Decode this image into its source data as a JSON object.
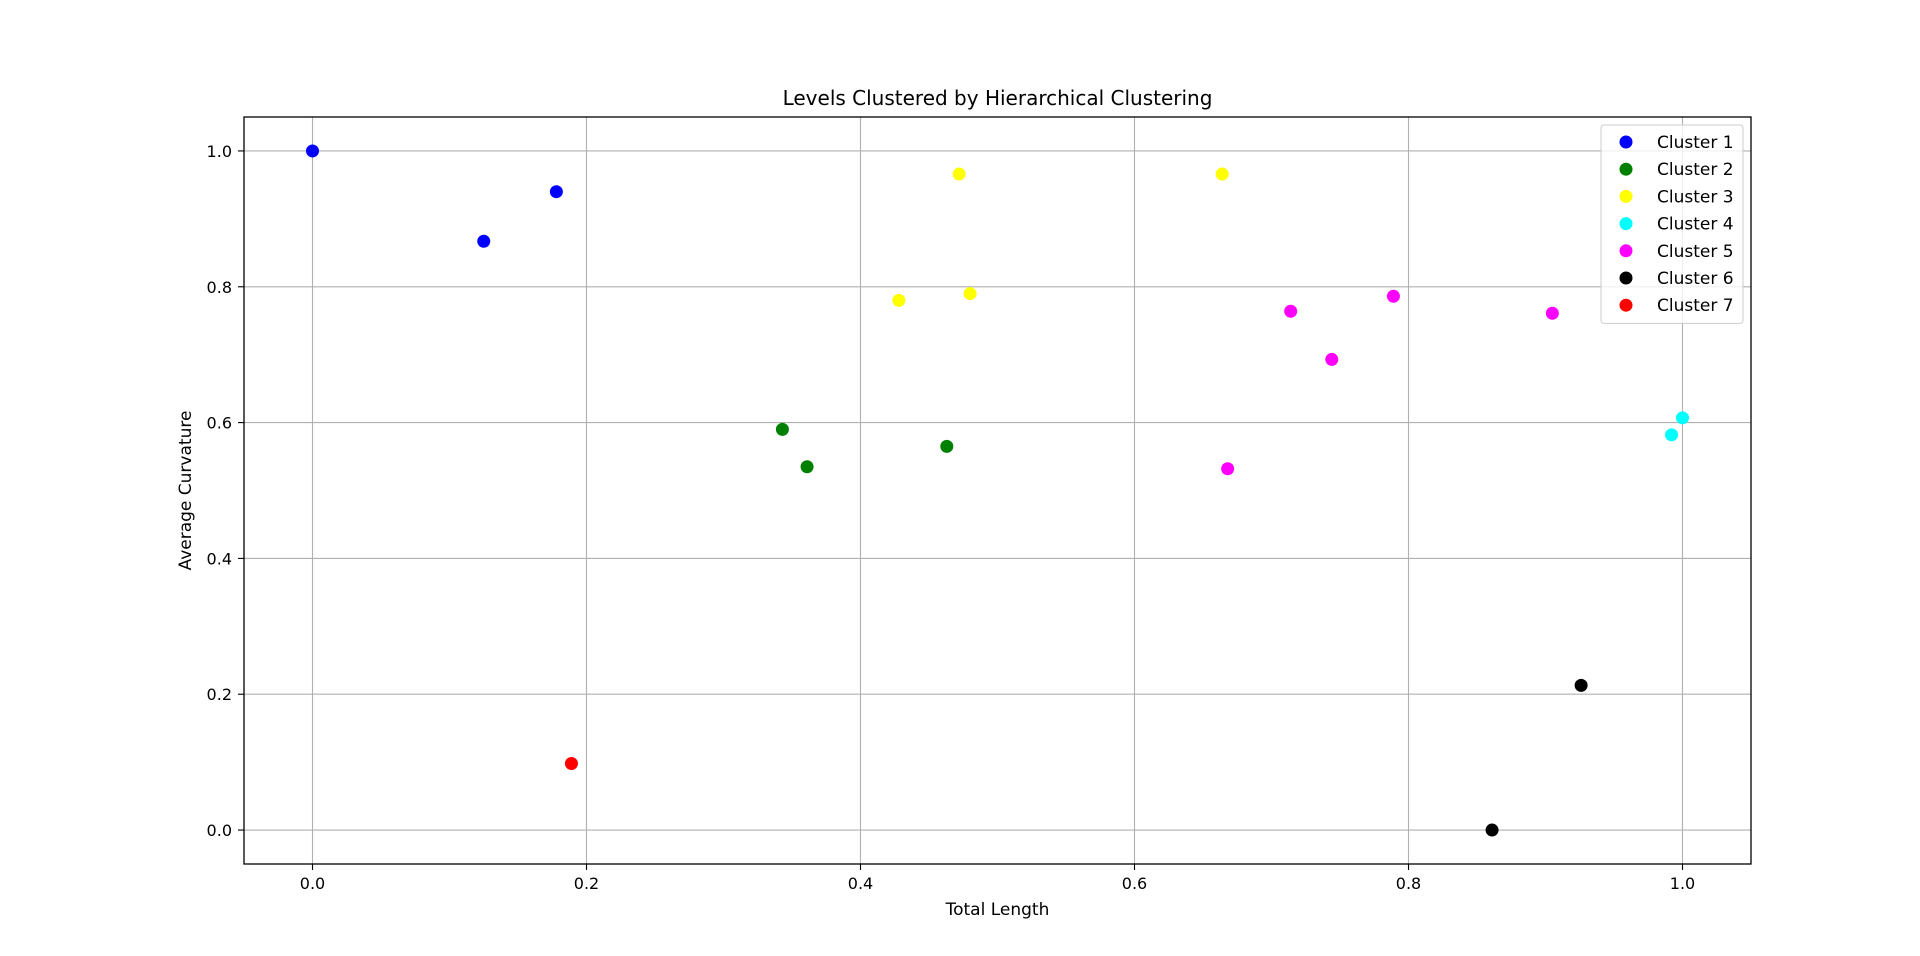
{
  "chart_data": {
    "type": "scatter",
    "title": "Levels Clustered by Hierarchical Clustering",
    "xlabel": "Total Length",
    "ylabel": "Average Curvature",
    "xlim": [
      -0.05,
      1.05
    ],
    "ylim": [
      -0.05,
      1.05
    ],
    "xticks": [
      0.0,
      0.2,
      0.4,
      0.6,
      0.8,
      1.0
    ],
    "yticks": [
      0.0,
      0.2,
      0.4,
      0.6,
      0.8,
      1.0
    ],
    "xtick_labels": [
      "0.0",
      "0.2",
      "0.4",
      "0.6",
      "0.8",
      "1.0"
    ],
    "ytick_labels": [
      "0.0",
      "0.2",
      "0.4",
      "0.6",
      "0.8",
      "1.0"
    ],
    "grid": true,
    "legend_position": "top-right",
    "series": [
      {
        "name": "Cluster 1",
        "color": "#0000ff",
        "points": [
          [
            0.0,
            1.0
          ],
          [
            0.125,
            0.867
          ],
          [
            0.178,
            0.94
          ]
        ]
      },
      {
        "name": "Cluster 2",
        "color": "#008000",
        "points": [
          [
            0.343,
            0.59
          ],
          [
            0.361,
            0.535
          ],
          [
            0.463,
            0.565
          ]
        ]
      },
      {
        "name": "Cluster 3",
        "color": "#ffff00",
        "points": [
          [
            0.472,
            0.966
          ],
          [
            0.664,
            0.966
          ],
          [
            0.428,
            0.78
          ],
          [
            0.48,
            0.79
          ]
        ]
      },
      {
        "name": "Cluster 4",
        "color": "#00ffff",
        "points": [
          [
            0.992,
            0.582
          ],
          [
            1.0,
            0.607
          ]
        ]
      },
      {
        "name": "Cluster 5",
        "color": "#ff00ff",
        "points": [
          [
            0.714,
            0.764
          ],
          [
            0.789,
            0.786
          ],
          [
            0.905,
            0.761
          ],
          [
            0.744,
            0.693
          ],
          [
            0.668,
            0.532
          ]
        ]
      },
      {
        "name": "Cluster 6",
        "color": "#000000",
        "points": [
          [
            0.926,
            0.213
          ],
          [
            0.861,
            0.0
          ]
        ]
      },
      {
        "name": "Cluster 7",
        "color": "#ff0000",
        "points": [
          [
            0.189,
            0.098
          ]
        ]
      }
    ]
  }
}
